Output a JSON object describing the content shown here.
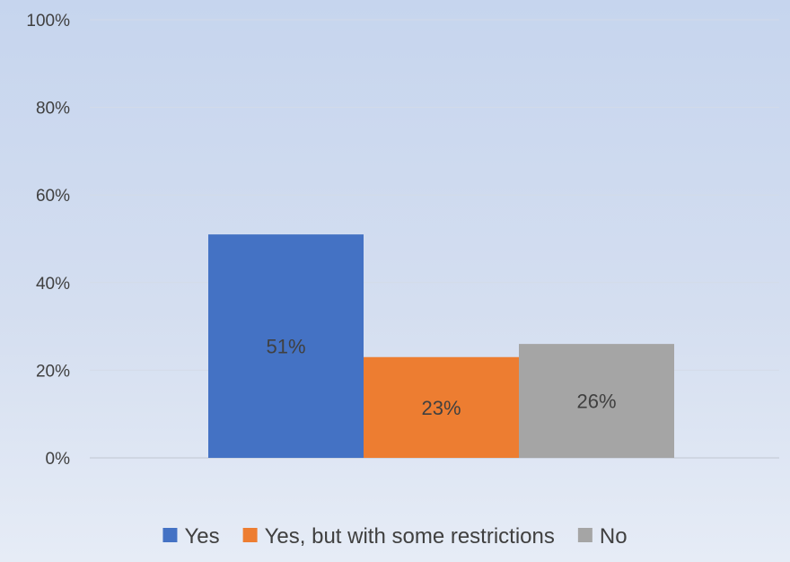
{
  "chart_data": {
    "type": "bar",
    "categories": [
      ""
    ],
    "series": [
      {
        "name": "Yes",
        "values": [
          51
        ],
        "color": "#4472C4",
        "label": "51%"
      },
      {
        "name": "Yes, but with some restrictions",
        "values": [
          23
        ],
        "color": "#ED7D31",
        "label": "23%"
      },
      {
        "name": "No",
        "values": [
          26
        ],
        "color": "#A5A5A5",
        "label": "26%"
      }
    ],
    "y_ticks": [
      "0%",
      "20%",
      "40%",
      "60%",
      "80%",
      "100%"
    ],
    "ylim": [
      0,
      100
    ],
    "grid": true,
    "legend_position": "bottom",
    "title": "",
    "xlabel": "",
    "ylabel": ""
  }
}
